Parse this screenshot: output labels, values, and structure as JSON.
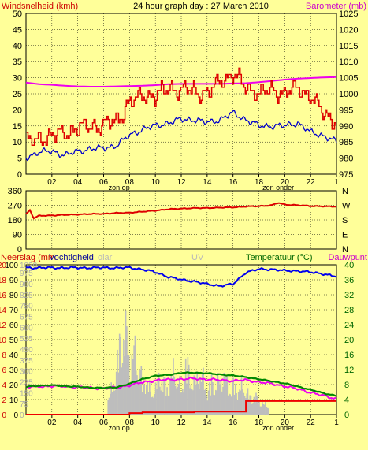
{
  "title": "24 hour graph day : 27 March 2010",
  "colors": {
    "background": "#ffff99",
    "wind_avg": "#0000cc",
    "wind_gust": "#dd0000",
    "barometer": "#ee00ee",
    "wind_dir": "#dd0000",
    "humidity": "#0000ee",
    "rain": "#ee0000",
    "solar": "#bdbdbd",
    "temperature": "#008800",
    "dewpoint": "#ee00ee",
    "label_red": "#cc0000",
    "label_magenta": "#cc00cc",
    "label_green": "#006600"
  },
  "time_axis": {
    "ticks": [
      "02",
      "04",
      "06",
      "08",
      "10",
      "12",
      "14",
      "16",
      "18",
      "20",
      "22",
      "1"
    ],
    "sunrise_label": "zon op",
    "sunset_label": "zon onder",
    "sunrise_hour": 7.2,
    "sunset_hour": 19.5
  },
  "chart_data": [
    {
      "type": "line",
      "panel": "wind",
      "x_unit": "hours since midnight",
      "left_label": "Windsnelheid (kmh)",
      "right_label": "Barometer (mb)",
      "left_ylim": [
        0,
        50
      ],
      "left_ticks": [
        0,
        5,
        10,
        15,
        20,
        25,
        30,
        35,
        40,
        45,
        50
      ],
      "right_ylim": [
        975,
        1025
      ],
      "right_ticks": [
        975,
        980,
        985,
        990,
        995,
        1000,
        1005,
        1010,
        1015,
        1020,
        1025
      ],
      "x": [
        0,
        1,
        2,
        3,
        4,
        5,
        6,
        7,
        8,
        9,
        10,
        11,
        12,
        13,
        14,
        15,
        16,
        17,
        18,
        19,
        20,
        21,
        22,
        23,
        24
      ],
      "series": [
        {
          "name": "wind gust",
          "axis": "left",
          "values": [
            10,
            11,
            12,
            13,
            14,
            15,
            15,
            17,
            22,
            25,
            24,
            27,
            26,
            26,
            25,
            29,
            31,
            27,
            25,
            26,
            25,
            27,
            24,
            19,
            16
          ]
        },
        {
          "name": "wind average",
          "axis": "left",
          "values": [
            5,
            7,
            7,
            6,
            7,
            8,
            8,
            9,
            12,
            14,
            15,
            16,
            17,
            17,
            16,
            17,
            19,
            17,
            15,
            15,
            15,
            16,
            13,
            12,
            10
          ]
        },
        {
          "name": "barometer",
          "axis": "right",
          "values": [
            1003.5,
            1003.0,
            1002.8,
            1002.5,
            1002.3,
            1002.2,
            1002.2,
            1002.3,
            1002.4,
            1002.5,
            1002.7,
            1003.0,
            1003.1,
            1003.1,
            1003.1,
            1003.1,
            1003.2,
            1003.3,
            1003.6,
            1004.0,
            1004.4,
            1004.7,
            1004.9,
            1005.1,
            1005.2
          ]
        }
      ]
    },
    {
      "type": "line",
      "panel": "wind-direction",
      "x_unit": "hours since midnight",
      "left_ylim": [
        0,
        360
      ],
      "left_ticks": [
        0,
        90,
        180,
        270,
        360
      ],
      "right_ticks": [
        "N",
        "W",
        "S",
        "E",
        "N"
      ],
      "x": [
        0,
        0.3,
        0.6,
        1,
        2,
        3,
        4,
        5,
        6,
        7,
        8,
        9,
        10,
        11,
        12,
        13,
        14,
        15,
        16,
        17,
        18,
        19,
        19.5,
        20,
        21,
        22,
        23,
        24
      ],
      "series": [
        {
          "name": "wind direction",
          "values": [
            215,
            240,
            190,
            205,
            208,
            210,
            214,
            216,
            218,
            222,
            225,
            230,
            238,
            245,
            250,
            252,
            254,
            255,
            258,
            262,
            265,
            270,
            285,
            275,
            270,
            266,
            263,
            262
          ]
        }
      ]
    },
    {
      "type": "line",
      "panel": "rain-humidity-temperature",
      "x_unit": "hours since midnight",
      "labels": [
        "Neerslag (mm",
        "Vochtigheid",
        "olar",
        "UV",
        "Temperatuur (°C)",
        "Dauwpunt"
      ],
      "left_ticks_rain": [
        0,
        2,
        4,
        6,
        8,
        10,
        12,
        14,
        16,
        18,
        20
      ],
      "left_ticks_humidity": [
        0,
        10,
        20,
        30,
        40,
        50,
        60,
        70,
        80,
        90,
        100
      ],
      "left_ticks_solar": [
        0,
        75,
        150,
        225,
        300,
        375,
        450,
        525,
        600,
        675,
        750,
        825,
        900,
        975,
        1030
      ],
      "right_ylim": [
        0,
        40
      ],
      "right_ticks": [
        0,
        4,
        8,
        12,
        16,
        20,
        24,
        28,
        32,
        36,
        40
      ],
      "x": [
        0,
        1,
        2,
        3,
        4,
        5,
        6,
        7,
        8,
        9,
        10,
        11,
        12,
        13,
        14,
        15,
        16,
        17,
        18,
        19,
        20,
        21,
        22,
        23,
        24
      ],
      "series": [
        {
          "name": "humidity",
          "axis": "humidity",
          "values": [
            98,
            98,
            98,
            98,
            98,
            98,
            98,
            98,
            98,
            97,
            95,
            92,
            90,
            89,
            87,
            86,
            87,
            95,
            97,
            97,
            96,
            96,
            95,
            94,
            92
          ]
        },
        {
          "name": "temperature",
          "axis": "right",
          "values": [
            7.4,
            7.7,
            7.8,
            7.6,
            7.4,
            7.2,
            7.1,
            7.3,
            8.2,
            9.5,
            10.3,
            10.6,
            11.1,
            11.2,
            11.0,
            10.7,
            10.4,
            10.0,
            9.4,
            8.9,
            8.3,
            7.5,
            6.6,
            5.7,
            5.0
          ]
        },
        {
          "name": "dewpoint",
          "axis": "right",
          "values": [
            7.3,
            7.5,
            7.6,
            7.5,
            7.3,
            7.1,
            7.0,
            7.2,
            7.8,
            8.6,
            9.1,
            9.3,
            9.4,
            9.6,
            9.4,
            9.2,
            9.0,
            9.2,
            8.7,
            8.2,
            7.6,
            6.8,
            5.9,
            5.0,
            4.2
          ]
        },
        {
          "name": "rain",
          "axis": "rain",
          "values": [
            0,
            0,
            0,
            0,
            0,
            0,
            0,
            0,
            0.2,
            0.3,
            0.3,
            0.3,
            0.3,
            0.4,
            0.4,
            0.4,
            0.4,
            1.8,
            1.8,
            1.8,
            1.8,
            1.8,
            1.8,
            1.8,
            1.8
          ]
        }
      ],
      "solar": {
        "x": [
          6.3,
          6.8,
          7.2,
          7.5,
          7.8,
          8.0,
          8.3,
          8.6,
          9.0,
          9.3,
          9.6,
          10.0,
          10.3,
          10.6,
          11.0,
          11.3,
          11.6,
          12.0,
          12.3,
          12.6,
          13.0,
          13.3,
          13.6,
          14.0,
          14.3,
          14.6,
          15.0,
          15.3,
          15.6,
          16.0,
          16.3,
          16.6,
          17.0,
          17.3,
          17.6,
          18.0,
          18.3,
          18.7
        ],
        "values": [
          150,
          300,
          650,
          780,
          720,
          400,
          620,
          450,
          300,
          320,
          200,
          240,
          380,
          290,
          250,
          420,
          350,
          200,
          480,
          380,
          280,
          390,
          350,
          200,
          310,
          260,
          330,
          350,
          250,
          280,
          220,
          260,
          220,
          150,
          180,
          120,
          100,
          80
        ]
      }
    }
  ]
}
